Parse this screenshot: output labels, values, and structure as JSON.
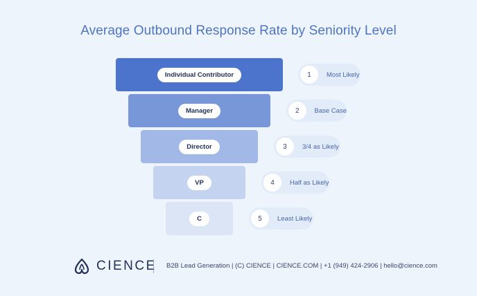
{
  "title": "Average Outbound Response Rate by Seniority Level",
  "levels": [
    {
      "label": "Individual Contributor",
      "rank": "1",
      "likelihood": "Most Likely"
    },
    {
      "label": "Manager",
      "rank": "2",
      "likelihood": "Base Case"
    },
    {
      "label": "Director",
      "rank": "3",
      "likelihood": "3/4 as Likely"
    },
    {
      "label": "VP",
      "rank": "4",
      "likelihood": "Half as Likely"
    },
    {
      "label": "C",
      "rank": "5",
      "likelihood": "Least Likely"
    }
  ],
  "colors": {
    "bar_1": "#4d74cd",
    "bar_2": "#7897d9",
    "bar_3": "#a2b8e6",
    "bar_4": "#c4d3f0",
    "bar_5": "#dbe5f5",
    "title": "#4f74c0"
  },
  "footer": {
    "logo_icon": "cience-leaf-icon",
    "brand": "CIENCE",
    "text": "B2B Lead Generation | (C) CIENCE | CIENCE.COM | +1 (949) 424-2906 | hello@cience.com"
  }
}
